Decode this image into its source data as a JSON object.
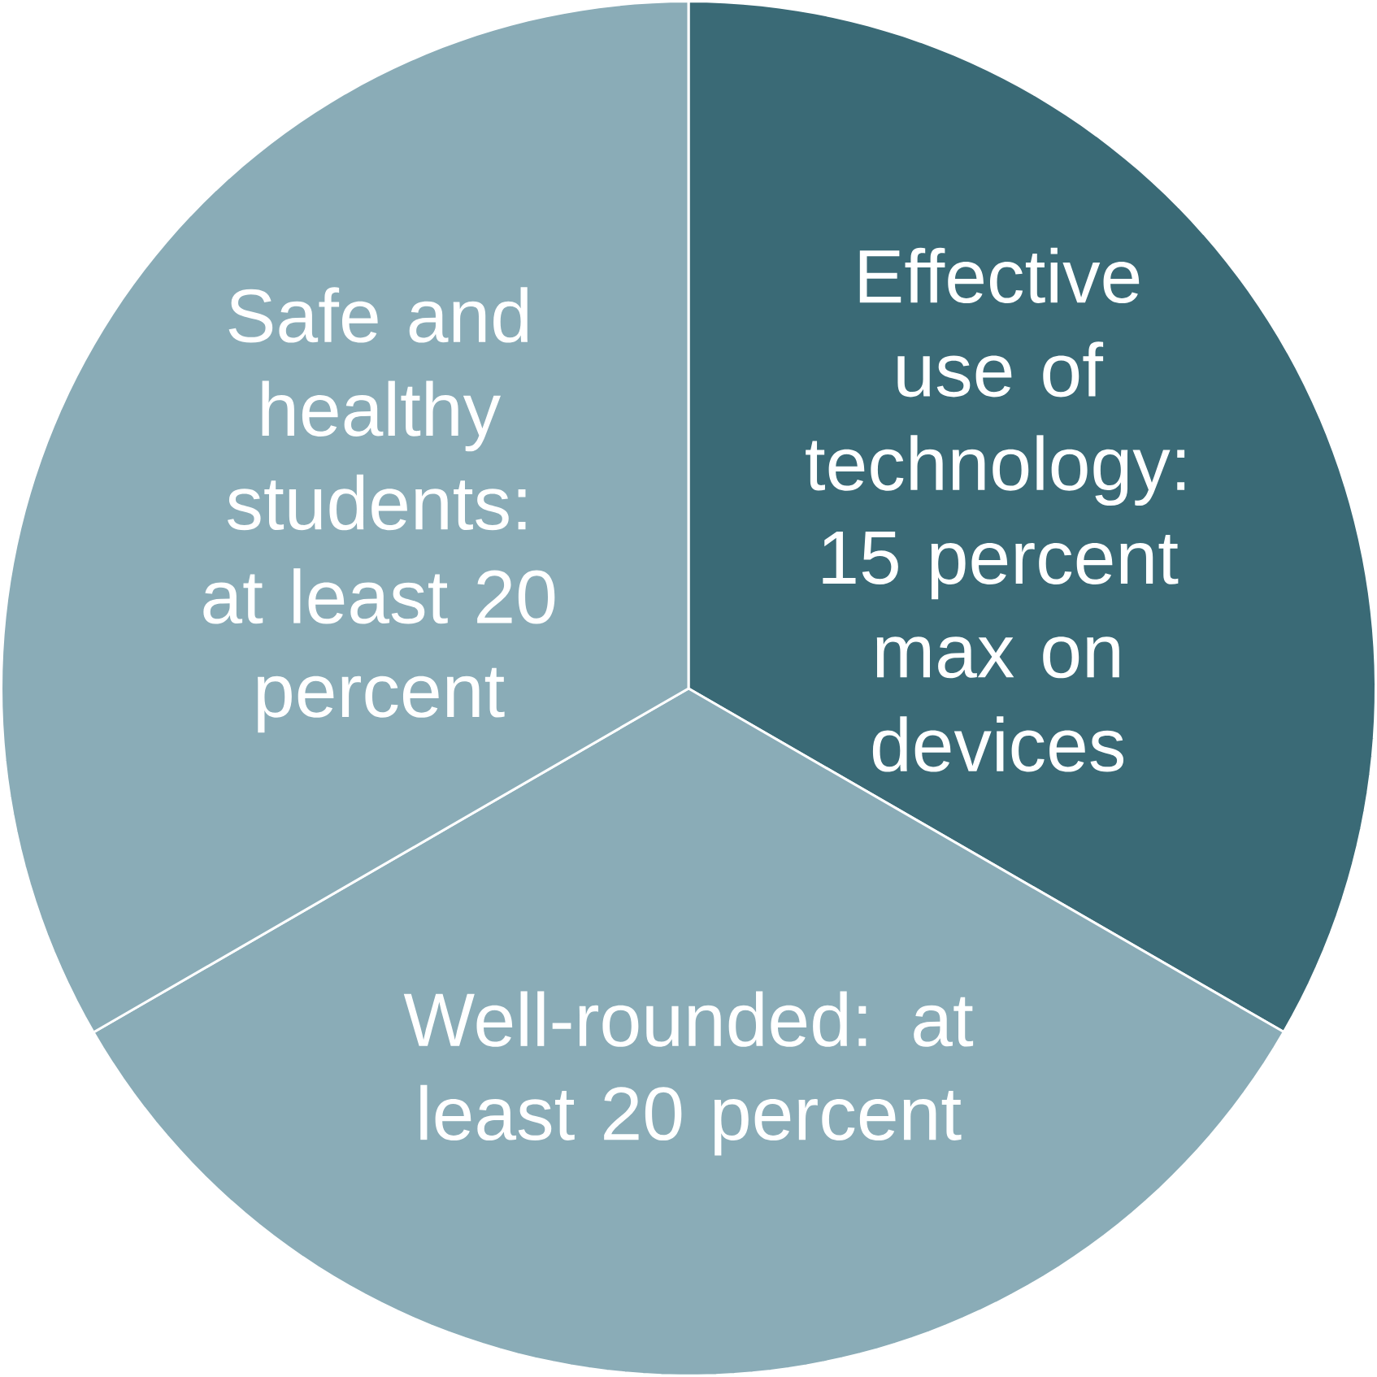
{
  "chart_data": {
    "type": "pie",
    "categories": [
      "Effective use of technology: 15 percent max on devices",
      "Well-rounded: at least 20 percent",
      "Safe and healthy students: at least 20 percent"
    ],
    "values": [
      33.33,
      33.33,
      33.34
    ],
    "colors": [
      "#3a6a76",
      "#8aacb7",
      "#8aacb7"
    ]
  }
}
